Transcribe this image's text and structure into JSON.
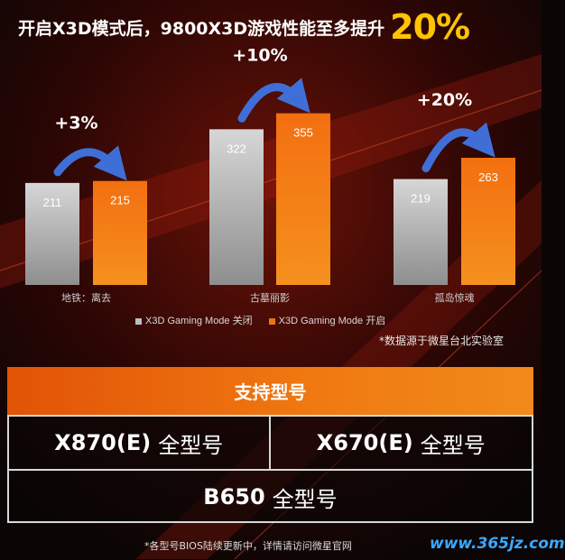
{
  "headline": {
    "text": "开启X3D模式后，9800X3D游戏性能至多提升",
    "highlight": "20%"
  },
  "chart_data": {
    "type": "bar",
    "categories": [
      "地铁：离去",
      "古墓丽影",
      "孤岛惊魂"
    ],
    "series": [
      {
        "name": "X3D Gaming Mode 关闭",
        "values": [
          211,
          322,
          219
        ],
        "color": "#bdbdbd"
      },
      {
        "name": "X3D Gaming Mode 开启",
        "values": [
          215,
          355,
          263
        ],
        "color": "#f07212"
      }
    ],
    "gains": [
      "+3%",
      "+10%",
      "+20%"
    ],
    "legend_position": "bottom",
    "grid": false,
    "ylim": [
      0,
      420
    ]
  },
  "source_note": "*数据源于微星台北实验室",
  "support": {
    "title": "支持型号",
    "models": [
      {
        "name": "X870(E)",
        "suffix": "全型号"
      },
      {
        "name": "X670(E)",
        "suffix": "全型号"
      },
      {
        "name": "B650",
        "suffix": "全型号"
      }
    ]
  },
  "footnote": "*各型号BIOS陆续更新中，详情请访问微星官网",
  "watermark": "www.365jz.com",
  "colors": {
    "accent_orange": "#f07212",
    "highlight_yellow": "#ffc400",
    "arrow_blue": "#3f6fd6"
  }
}
